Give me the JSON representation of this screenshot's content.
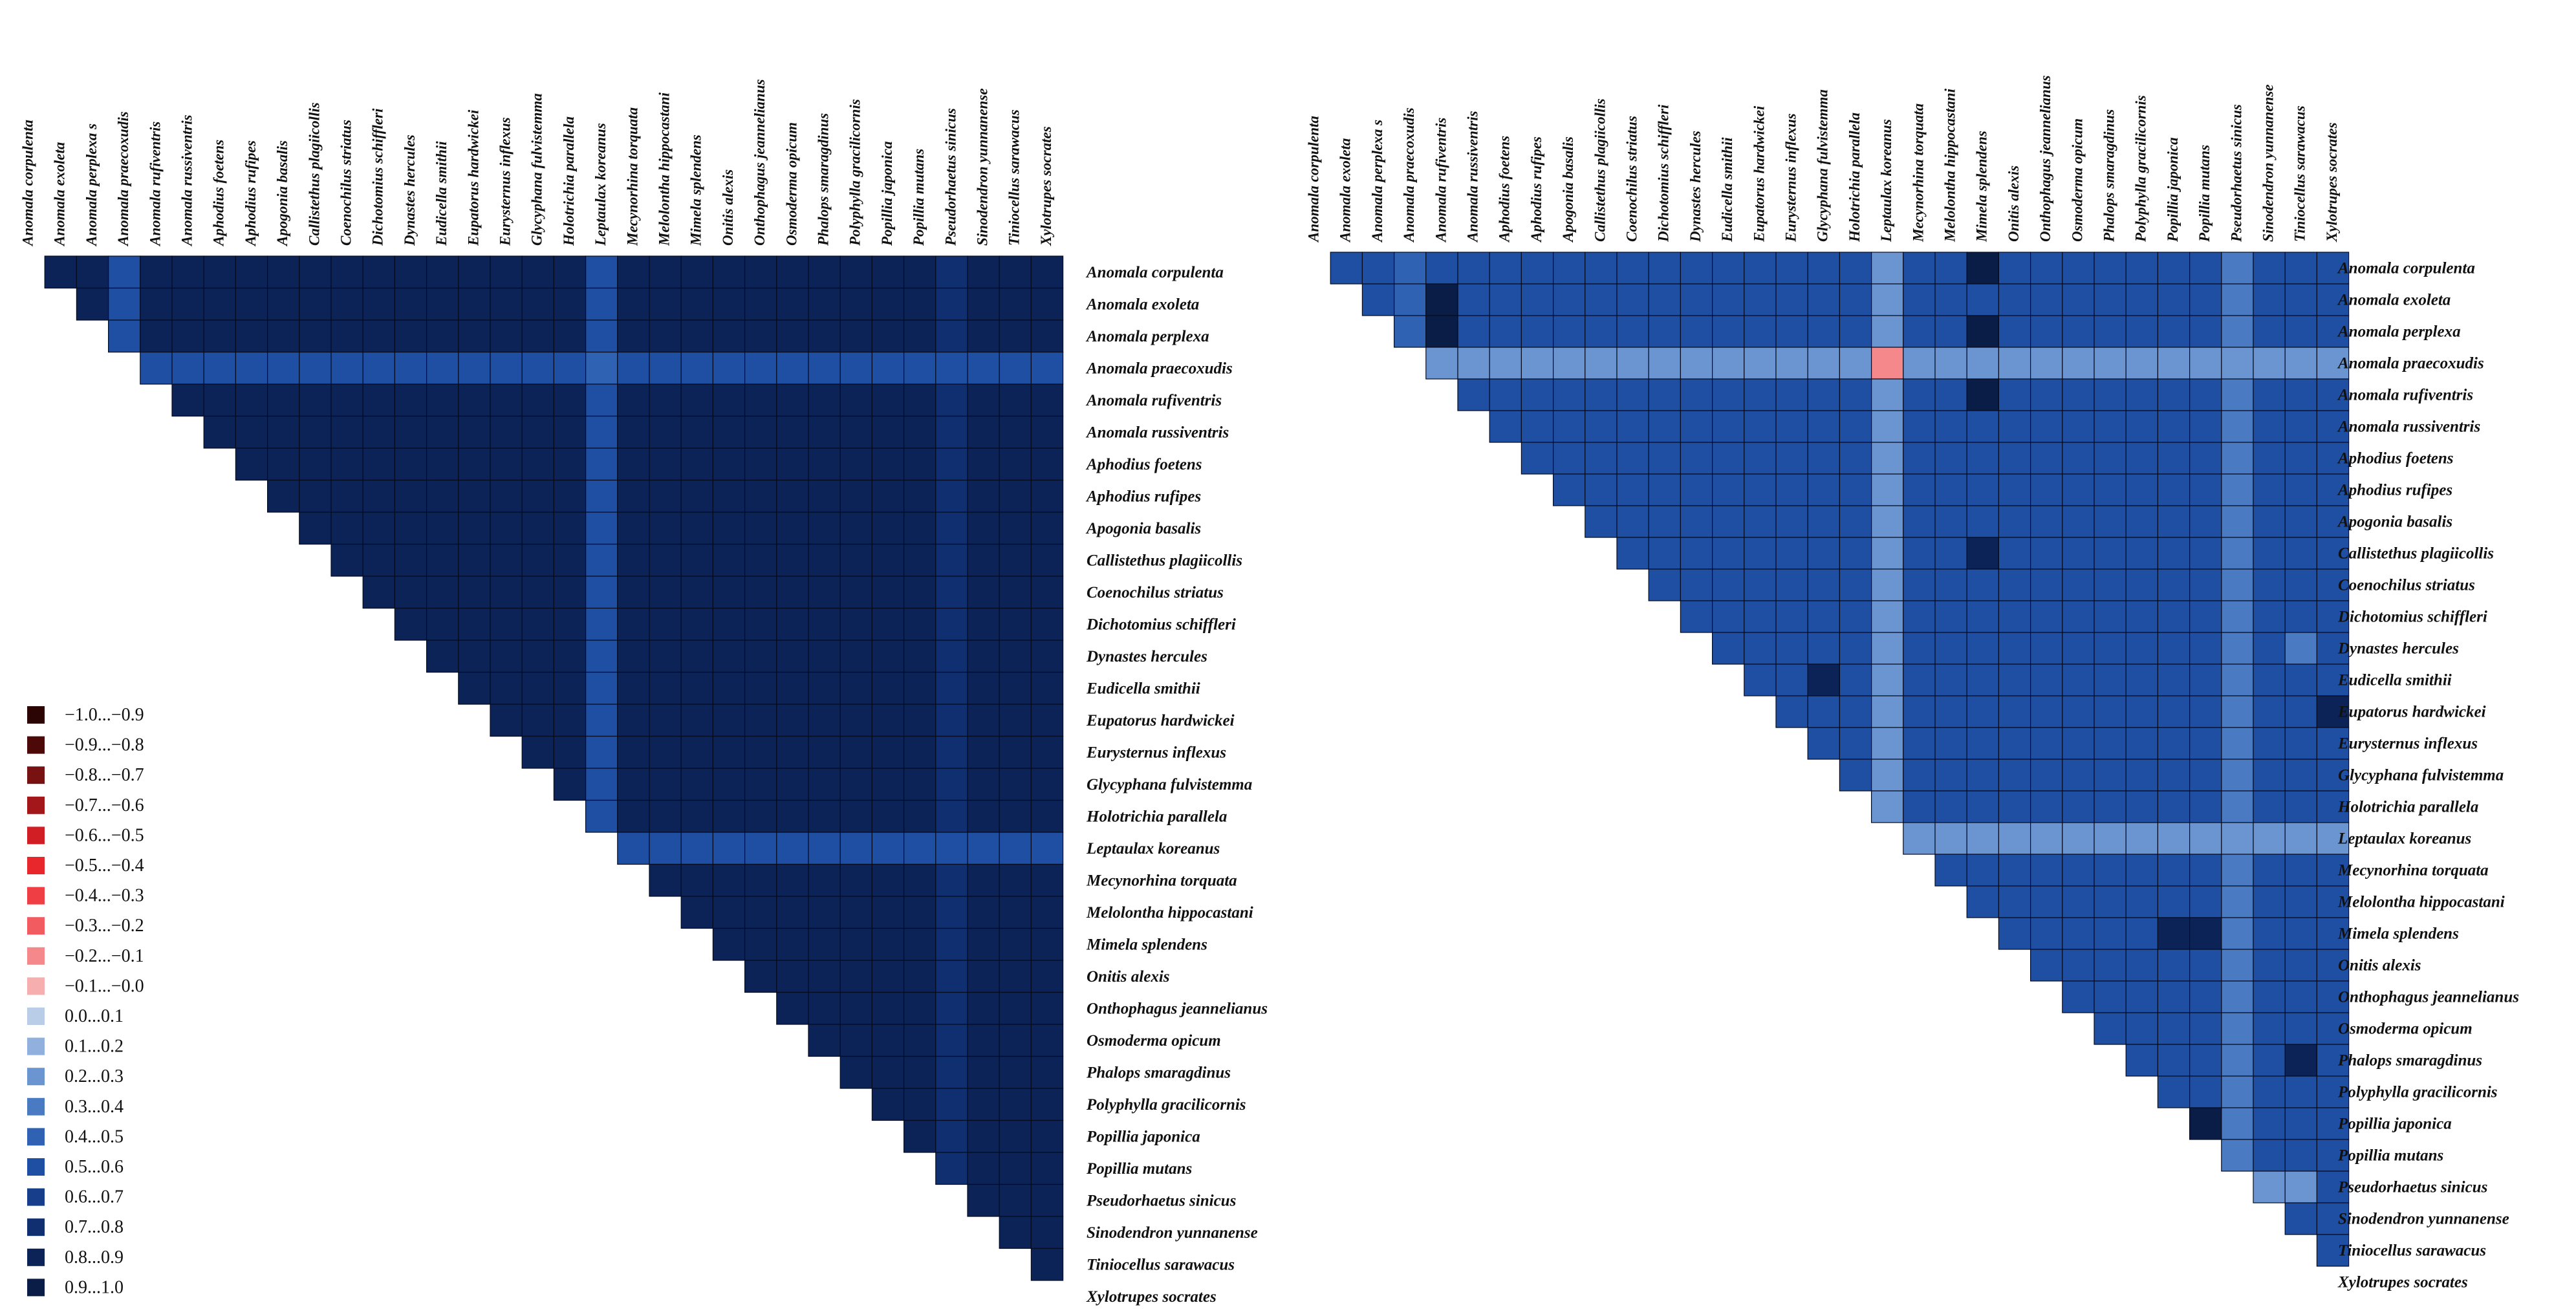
{
  "species": [
    "Anomala corpulenta",
    "Anomala exoleta",
    "Anomala perplexa",
    "Anomala praecoxudis",
    "Anomala rufiventris",
    "Anomala russiventris",
    "Aphodius foetens",
    "Aphodius rufipes",
    "Apogonia basalis",
    "Callistethus plagiicollis",
    "Coenochilus striatus",
    "Dichotomius schiffleri",
    "Dynastes hercules",
    "Eudicella smithii",
    "Eupatorus hardwickei",
    "Eurysternus inflexus",
    "Glycyphana fulvistemma",
    "Holotrichia parallela",
    "Leptaulax koreanus",
    "Mecynorhina torquata",
    "Melolontha hippocastani",
    "Mimela splendens",
    "Onitis alexis",
    "Onthophagus  jeannelianus",
    "Osmoderma opicum",
    "Phalops smaragdinus",
    "Polyphylla gracilicornis",
    "Popillia japonica",
    "Popillia mutans",
    "Pseudorhaetus sinicus",
    "Sinodendron yunnanense",
    "Tiniocellus sarawacus",
    "Xylotrupes socrates"
  ],
  "top_labels": [
    "Anomala corpulenta",
    "Anomala exoleta",
    "Anomala perplexa s",
    "Anomala praecoxudis",
    "Anomala rufiventris",
    "Anomala russiventris",
    "Aphodius foetens",
    "Aphodius rufipes",
    "Apogonia basalis",
    "Callistethus plagiicollis",
    "Coenochilus striatus",
    "Dichotomius schiffleri",
    "Dynastes hercules",
    "Eudicella smithii",
    "Eupatorus hardwickei",
    "Eurysternus inflexus",
    "Glycyphana fulvistemma",
    "Holotrichia parallela",
    "Leptaulax koreanus",
    "Mecynorhina torquata",
    "Melolontha hippocastani",
    "Mimela splendens",
    "Onitis alexis",
    "Onthophagus  jeannelianus",
    "Osmoderma opicum",
    "Phalops smaragdinus",
    "Polyphylla gracilicornis",
    "Popillia japonica",
    "Popillia mutans",
    "Pseudorhaetus sinicus",
    "Sinodendron yunnanense",
    "Tiniocellus sarawacus",
    "Xylotrupes socrates"
  ],
  "legend": [
    {
      "label": "−1.0...−0.9",
      "color": "#2b0404"
    },
    {
      "label": "−0.9...−0.8",
      "color": "#4d0808"
    },
    {
      "label": "−0.8...−0.7",
      "color": "#781111"
    },
    {
      "label": "−0.7...−0.6",
      "color": "#a3161a"
    },
    {
      "label": "−0.6...−0.5",
      "color": "#d11e25"
    },
    {
      "label": "−0.5...−0.4",
      "color": "#e8272c"
    },
    {
      "label": "−0.4...−0.3",
      "color": "#ef3f44"
    },
    {
      "label": "−0.3...−0.2",
      "color": "#f25c61"
    },
    {
      "label": "−0.2...−0.1",
      "color": "#f5888a"
    },
    {
      "label": "−0.1...−0.0",
      "color": "#f7aeae"
    },
    {
      "label": "0.0...0.1",
      "color": "#b9cce8"
    },
    {
      "label": "0.1...0.2",
      "color": "#92b0de"
    },
    {
      "label": "0.2...0.3",
      "color": "#6b95d1"
    },
    {
      "label": "0.3...0.4",
      "color": "#4a7bc2"
    },
    {
      "label": "0.4...0.5",
      "color": "#2f62b2"
    },
    {
      "label": "0.5...0.6",
      "color": "#1f4fa3"
    },
    {
      "label": "0.6...0.7",
      "color": "#173e8a"
    },
    {
      "label": "0.7...0.8",
      "color": "#102f70"
    },
    {
      "label": "0.8...0.9",
      "color": "#0b2357"
    },
    {
      "label": "0.9...1.0",
      "color": "#0a1d46"
    }
  ],
  "chart_data": [
    {
      "type": "heatmap",
      "panel": "left",
      "value_range": [
        -1.0,
        1.0
      ],
      "default_value": 0.88,
      "row_values": {
        "Anomala praecoxudis": 0.55,
        "Leptaulax koreanus": 0.6
      },
      "column_values": {
        "Anomala praecoxudis": 0.6,
        "Leptaulax koreanus": 0.55,
        "Pseudorhaetus sinicus": 0.75,
        "Glycyphana fulvistemma": 0.8
      },
      "cell_values": [
        {
          "row": "Anomala praecoxudis",
          "col": "Leptaulax koreanus",
          "value": 0.4
        },
        {
          "row": "Anomala praecoxudis",
          "col": "Dichotomius schiffleri",
          "value": 0.5
        }
      ]
    },
    {
      "type": "heatmap",
      "panel": "right",
      "value_range": [
        -1.0,
        1.0
      ],
      "default_value": 0.5,
      "row_values": {
        "Anomala praecoxudis": 0.3,
        "Leptaulax koreanus": 0.3
      },
      "column_values": {
        "Anomala praecoxudis": 0.45,
        "Leptaulax koreanus": 0.25,
        "Pseudorhaetus sinicus": 0.35,
        "Glycyphana fulvistemma": 0.55
      },
      "cell_values": [
        {
          "row": "Anomala praecoxudis",
          "col": "Leptaulax koreanus",
          "value": -0.15
        },
        {
          "row": "Anomala corpulenta",
          "col": "Mimela splendens",
          "value": 0.9
        },
        {
          "row": "Anomala perplexa",
          "col": "Mimela splendens",
          "value": 0.9
        },
        {
          "row": "Anomala rufiventris",
          "col": "Mimela splendens",
          "value": 0.9
        },
        {
          "row": "Anomala exoleta",
          "col": "Anomala rufiventris",
          "value": 0.9
        },
        {
          "row": "Anomala perplexa",
          "col": "Anomala rufiventris",
          "value": 0.9
        },
        {
          "row": "Popillia japonica",
          "col": "Popillia mutans",
          "value": 0.9
        },
        {
          "row": "Mimela splendens",
          "col": "Popillia japonica",
          "value": 0.85
        },
        {
          "row": "Mimela splendens",
          "col": "Popillia mutans",
          "value": 0.85
        },
        {
          "row": "Eudicella smithii",
          "col": "Glycyphana fulvistemma",
          "value": 0.85
        },
        {
          "row": "Callistethus plagiicollis",
          "col": "Mimela splendens",
          "value": 0.85
        },
        {
          "row": "Phalops smaragdinus",
          "col": "Tiniocellus sarawacus",
          "value": 0.8
        },
        {
          "row": "Eupatorus hardwickei",
          "col": "Xylotrupes socrates",
          "value": 0.8
        },
        {
          "row": "Dynastes hercules",
          "col": "Tiniocellus sarawacus",
          "value": 0.35
        },
        {
          "row": "Pseudorhaetus sinicus",
          "col": "Sinodendron yunnanense",
          "value": 0.3
        },
        {
          "row": "Pseudorhaetus sinicus",
          "col": "Tiniocellus sarawacus",
          "value": 0.3
        }
      ]
    }
  ]
}
